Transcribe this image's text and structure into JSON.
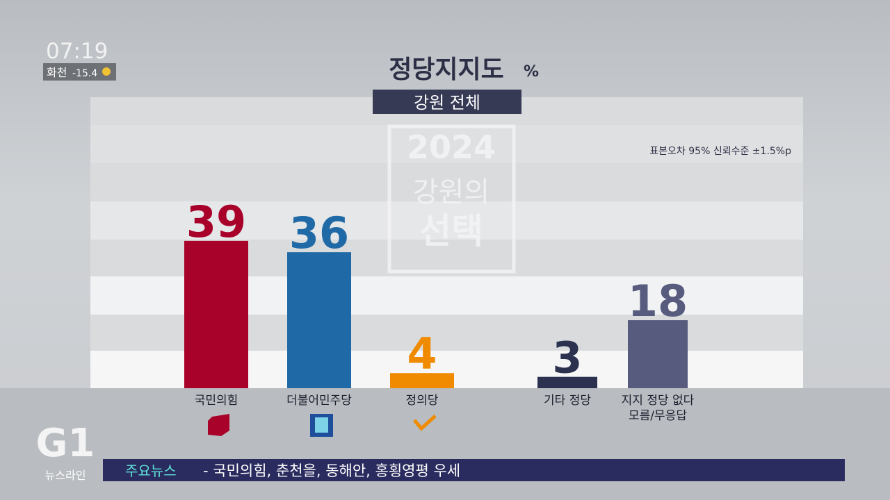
{
  "chart_data": {
    "type": "bar",
    "title": "정당지지도",
    "unit": "%",
    "subtitle": "강원 전체",
    "note": "표본오차 95% 신뢰수준 ±1.5%p",
    "categories": [
      "국민의힘",
      "더불어민주당",
      "정의당",
      "기타 정당",
      "지지 정당 없다\n모름/무응답"
    ],
    "values": [
      39,
      36,
      4,
      3,
      18
    ],
    "colors": [
      "#a8022b",
      "#1f6aa6",
      "#f08b00",
      "#2c314f",
      "#575b7e"
    ]
  },
  "watermark": {
    "year": "2024",
    "line1": "강원의",
    "line2": "선택"
  },
  "clock": {
    "time": "07:19",
    "place": "화천",
    "temperature": "-15.4"
  },
  "logo": {
    "brand": "G1",
    "program": "뉴스라인"
  },
  "ticker": {
    "label": "주요뉴스",
    "headline": "- 국민의힘, 춘천을, 동해안, 홍횡영평 우세"
  }
}
